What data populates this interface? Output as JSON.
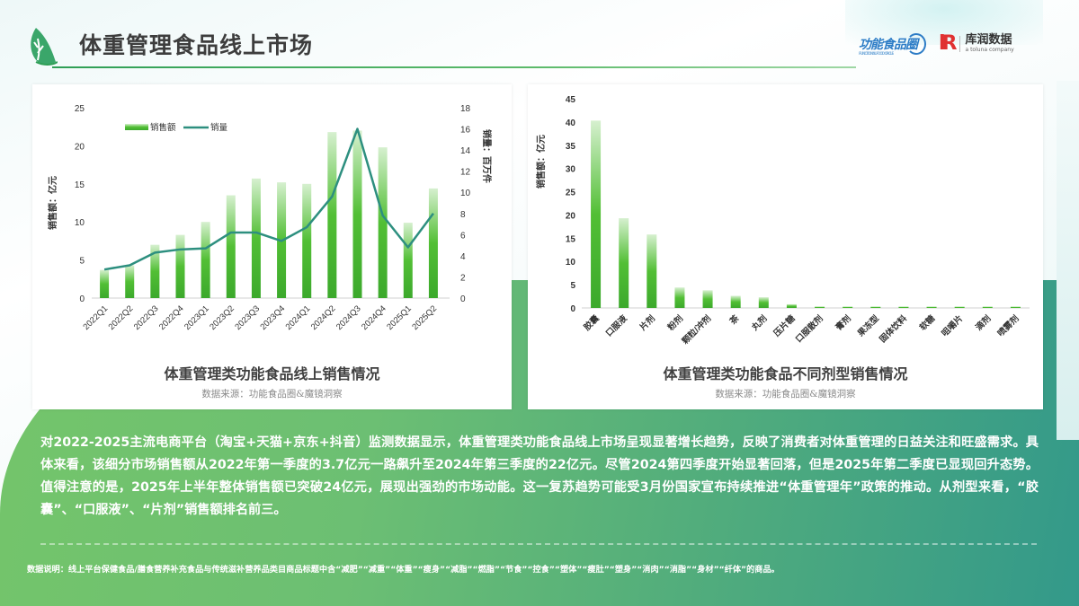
{
  "header": {
    "title": "体重管理食品线上市场",
    "logo_left_text": "功能食品圈",
    "logo_left_sub": "FUNCTIONAL FOOD CIRCLE",
    "logo_right_mark": "R",
    "logo_right_cn": "库润数据",
    "logo_right_en": "a toluna company"
  },
  "colors": {
    "bar_top": "#d6f0cf",
    "bar_mid": "#52bf35",
    "bar_bottom": "#3ca92c",
    "line": "#2d8f7f",
    "title_text": "#3d3d3d",
    "accent_green": "#2e9e55"
  },
  "chart_data": [
    {
      "type": "bar+line",
      "title": "体重管理类功能食品线上销售情况",
      "source": "数据来源：功能食品圈&魔镜洞察",
      "categories": [
        "2022Q1",
        "2022Q2",
        "2022Q3",
        "2022Q4",
        "2023Q1",
        "2023Q2",
        "2023Q3",
        "2023Q4",
        "2024Q1",
        "2024Q2",
        "2024Q3",
        "2024Q4",
        "2025Q1",
        "2025Q2"
      ],
      "series": [
        {
          "name": "销售额",
          "type": "bar",
          "axis": "left",
          "unit": "亿元",
          "values": [
            3.7,
            4.3,
            7.0,
            8.3,
            10.0,
            13.5,
            15.7,
            15.2,
            15.0,
            21.8,
            22.0,
            19.8,
            9.9,
            14.4
          ]
        },
        {
          "name": "销量",
          "type": "line",
          "axis": "right",
          "unit": "百万件",
          "values": [
            2.7,
            3.1,
            4.3,
            4.6,
            4.7,
            6.2,
            6.2,
            5.4,
            6.7,
            9.6,
            16.0,
            7.8,
            4.8,
            8.0
          ]
        }
      ],
      "ylabel": "销售额：亿元",
      "y2label": "销量：百万件",
      "ylim": [
        0,
        25
      ],
      "yticks": [
        0,
        5,
        10,
        15,
        20,
        25
      ],
      "y2lim": [
        0,
        18
      ],
      "y2ticks": [
        0,
        2,
        4,
        6,
        8,
        10,
        12,
        14,
        16,
        18
      ],
      "legend": [
        "销售额",
        "销量"
      ],
      "legend_position": "top-left",
      "grid": false
    },
    {
      "type": "bar",
      "title": "体重管理类功能食品不同剂型销售情况",
      "source": "数据来源：功能食品圈&魔镜洞察",
      "categories": [
        "胶囊",
        "口服液",
        "片剂",
        "粉剂",
        "颗粒/冲剂",
        "茶",
        "丸剂",
        "压片糖",
        "口服散剂",
        "膏剂",
        "果冻型",
        "固体饮料",
        "软糖",
        "咀嚼片",
        "滴剂",
        "喷雾剂"
      ],
      "values": [
        40.3,
        19.3,
        15.8,
        4.4,
        3.8,
        2.6,
        2.3,
        0.8,
        0.3,
        0.2,
        0.2,
        0.2,
        0.1,
        0.05,
        0.03,
        0.02
      ],
      "ylabel": "销售额：亿元",
      "ylim": [
        0,
        45
      ],
      "yticks": [
        0,
        5,
        10,
        15,
        20,
        25,
        30,
        35,
        40,
        45
      ],
      "grid": false
    }
  ],
  "body": {
    "paragraph": "对2022-2025主流电商平台（淘宝+天猫+京东+抖音）监测数据显示，体重管理类功能食品线上市场呈现显著增长趋势，反映了消费者对体重管理的日益关注和旺盛需求。具体来看，该细分市场销售额从2022年第一季度的3.7亿元一路飙升至2024年第三季度的22亿元。尽管2024第四季度开始显著回落，但是2025年第二季度已显现回升态势。值得注意的是，2025年上半年整体销售额已突破24亿元，展现出强劲的市场动能。这一复苏趋势可能受3月份国家宣布持续推进“体重管理年”政策的推动。从剂型来看，“胶囊”、“口服液”、“片剂”销售额排名前三。"
  },
  "footnote": {
    "text": "数据说明：线上平台保健食品/膳食营养补充食品与传统滋补营养品类目商品标题中含“减肥”“减重”“体重”“瘦身”“减脂”“燃脂”“节食”“控食”“塑体”“瘦肚”“塑身”“消肉”“消脂”“身材”“纤体”的商品。"
  }
}
